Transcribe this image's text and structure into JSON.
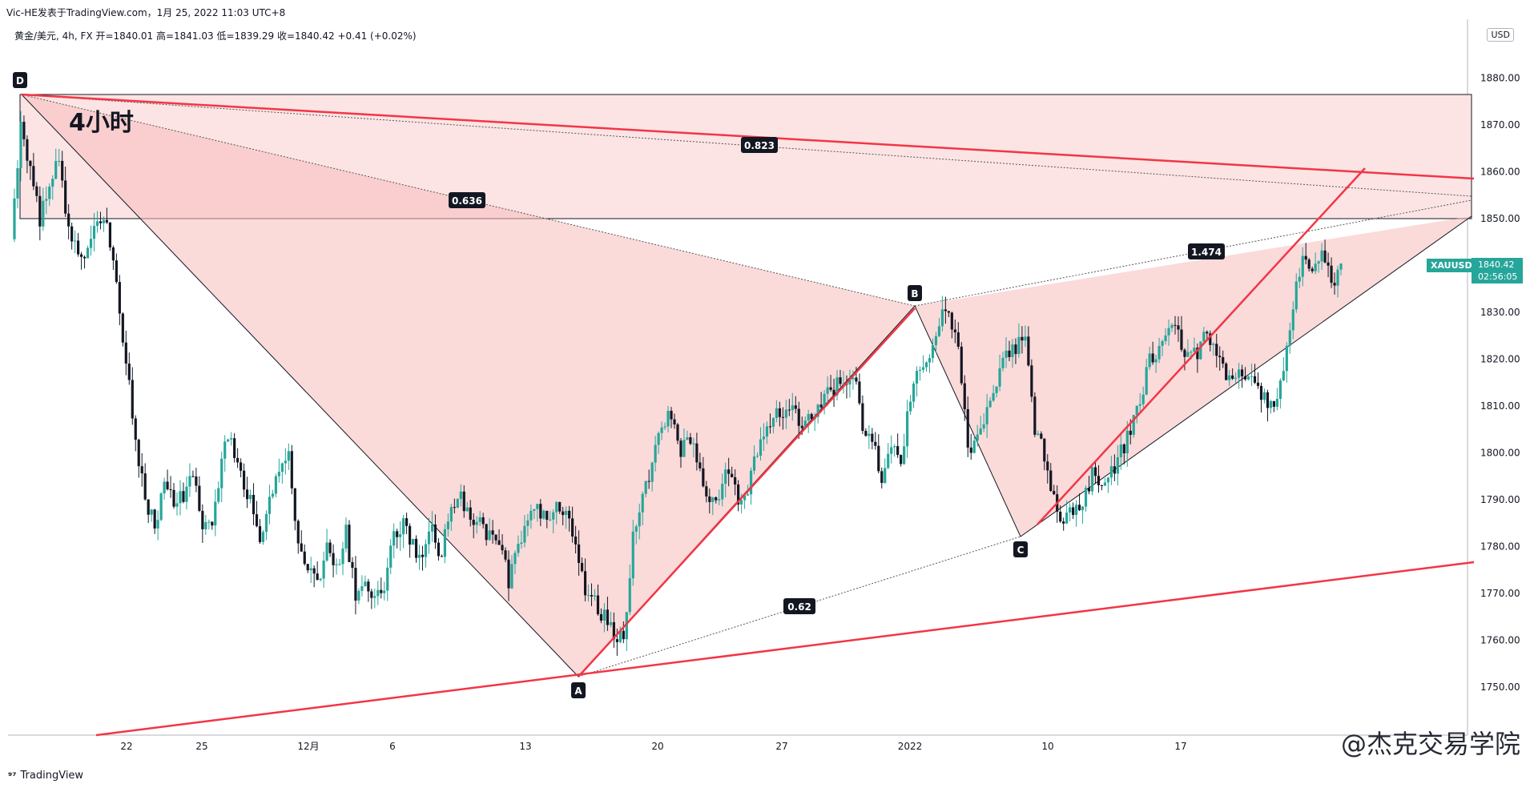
{
  "header": {
    "publisher": "Vic-HE发表于TradingView.com，1月 25, 2022 11:03 UTC+8",
    "legend": "黄金/美元, 4h, FX  开=1840.01  高=1841.03  低=1839.29  收=1840.42  +0.41 (+0.02%)"
  },
  "timeframe_label": "4小时",
  "currency": "USD",
  "symbol_tag": "XAUUSD",
  "price_tag": {
    "price": "1840.42",
    "countdown": "02:56:05"
  },
  "brand": "TradingView",
  "footer_watermark": "@杰克交易学院",
  "colors": {
    "up": "#26a69a",
    "down": "#131722",
    "trend": "#f23645",
    "pattern_fill": "#f8bbbb",
    "zone_fill": "#fce4e4"
  },
  "chart_data": {
    "type": "candlestick",
    "symbol": "XAUUSD",
    "timeframe": "4h",
    "x_ticks": [
      "22",
      "25",
      "12月",
      "6",
      "13",
      "20",
      "27",
      "2022",
      "10",
      "17"
    ],
    "y_ticks": [
      1750,
      1760,
      1770,
      1780,
      1790,
      1800,
      1810,
      1820,
      1830,
      1840,
      1850,
      1860,
      1870,
      1880
    ],
    "ylim": [
      1740,
      1890
    ],
    "last_price": 1840.42,
    "points": [
      {
        "label": "D",
        "date": "Nov 16",
        "price": 1877
      },
      {
        "label": "A",
        "date": "Dec 15",
        "price": 1753
      },
      {
        "label": "B",
        "date": "Dec 31",
        "price": 1832
      },
      {
        "label": "C",
        "date": "Jan 7",
        "price": 1782
      }
    ],
    "ratios": [
      "0.636",
      "0.823",
      "0.62",
      "1.474"
    ],
    "zone": {
      "top": 1877,
      "bottom": 1850
    },
    "close_path": [
      [
        0,
        1845
      ],
      [
        2,
        1870
      ],
      [
        4,
        1860
      ],
      [
        6,
        1850
      ],
      [
        8,
        1858
      ],
      [
        10,
        1862
      ],
      [
        12,
        1848
      ],
      [
        14,
        1842
      ],
      [
        16,
        1843
      ],
      [
        18,
        1850
      ],
      [
        20,
        1848
      ],
      [
        22,
        1835
      ],
      [
        24,
        1820
      ],
      [
        26,
        1803
      ],
      [
        28,
        1790
      ],
      [
        30,
        1785
      ],
      [
        32,
        1793
      ],
      [
        34,
        1790
      ],
      [
        36,
        1790
      ],
      [
        38,
        1795
      ],
      [
        40,
        1785
      ],
      [
        42,
        1783
      ],
      [
        44,
        1800
      ],
      [
        46,
        1803
      ],
      [
        48,
        1795
      ],
      [
        50,
        1790
      ],
      [
        52,
        1780
      ],
      [
        54,
        1790
      ],
      [
        56,
        1795
      ],
      [
        58,
        1800
      ],
      [
        60,
        1780
      ],
      [
        62,
        1776
      ],
      [
        64,
        1772
      ],
      [
        66,
        1780
      ],
      [
        68,
        1775
      ],
      [
        70,
        1783
      ],
      [
        72,
        1770
      ],
      [
        74,
        1773
      ],
      [
        76,
        1768
      ],
      [
        78,
        1772
      ],
      [
        80,
        1782
      ],
      [
        82,
        1785
      ],
      [
        84,
        1780
      ],
      [
        86,
        1778
      ],
      [
        88,
        1783
      ],
      [
        90,
        1778
      ],
      [
        92,
        1790
      ],
      [
        94,
        1790
      ],
      [
        96,
        1786
      ],
      [
        98,
        1785
      ],
      [
        100,
        1782
      ],
      [
        102,
        1780
      ],
      [
        104,
        1773
      ],
      [
        106,
        1780
      ],
      [
        108,
        1786
      ],
      [
        110,
        1788
      ],
      [
        112,
        1785
      ],
      [
        114,
        1788
      ],
      [
        116,
        1786
      ],
      [
        118,
        1782
      ],
      [
        120,
        1770
      ],
      [
        122,
        1768
      ],
      [
        124,
        1765
      ],
      [
        126,
        1762
      ],
      [
        128,
        1760
      ],
      [
        130,
        1782
      ],
      [
        132,
        1790
      ],
      [
        134,
        1798
      ],
      [
        136,
        1805
      ],
      [
        138,
        1808
      ],
      [
        140,
        1800
      ],
      [
        142,
        1803
      ],
      [
        144,
        1797
      ],
      [
        146,
        1790
      ],
      [
        148,
        1792
      ],
      [
        150,
        1797
      ],
      [
        152,
        1790
      ],
      [
        154,
        1793
      ],
      [
        156,
        1800
      ],
      [
        158,
        1807
      ],
      [
        160,
        1808
      ],
      [
        162,
        1810
      ],
      [
        164,
        1808
      ],
      [
        166,
        1806
      ],
      [
        168,
        1808
      ],
      [
        170,
        1812
      ],
      [
        172,
        1814
      ],
      [
        174,
        1816
      ],
      [
        176,
        1817
      ],
      [
        178,
        1806
      ],
      [
        180,
        1803
      ],
      [
        182,
        1795
      ],
      [
        184,
        1802
      ],
      [
        186,
        1798
      ],
      [
        188,
        1812
      ],
      [
        190,
        1818
      ],
      [
        192,
        1822
      ],
      [
        194,
        1828
      ],
      [
        196,
        1830
      ],
      [
        198,
        1822
      ],
      [
        200,
        1800
      ],
      [
        202,
        1802
      ],
      [
        204,
        1808
      ],
      [
        206,
        1815
      ],
      [
        208,
        1820
      ],
      [
        210,
        1822
      ],
      [
        212,
        1826
      ],
      [
        214,
        1805
      ],
      [
        216,
        1800
      ],
      [
        218,
        1790
      ],
      [
        220,
        1785
      ],
      [
        222,
        1788
      ],
      [
        224,
        1790
      ],
      [
        226,
        1795
      ],
      [
        228,
        1792
      ],
      [
        230,
        1796
      ],
      [
        232,
        1800
      ],
      [
        234,
        1805
      ],
      [
        236,
        1810
      ],
      [
        238,
        1820
      ],
      [
        240,
        1822
      ],
      [
        242,
        1825
      ],
      [
        244,
        1826
      ],
      [
        246,
        1820
      ],
      [
        248,
        1822
      ],
      [
        250,
        1825
      ],
      [
        252,
        1822
      ],
      [
        254,
        1815
      ],
      [
        256,
        1818
      ],
      [
        258,
        1816
      ],
      [
        260,
        1815
      ],
      [
        262,
        1812
      ],
      [
        264,
        1810
      ],
      [
        266,
        1818
      ],
      [
        268,
        1832
      ],
      [
        270,
        1842
      ],
      [
        272,
        1838
      ],
      [
        274,
        1842
      ],
      [
        276,
        1836
      ],
      [
        278,
        1840
      ]
    ]
  }
}
